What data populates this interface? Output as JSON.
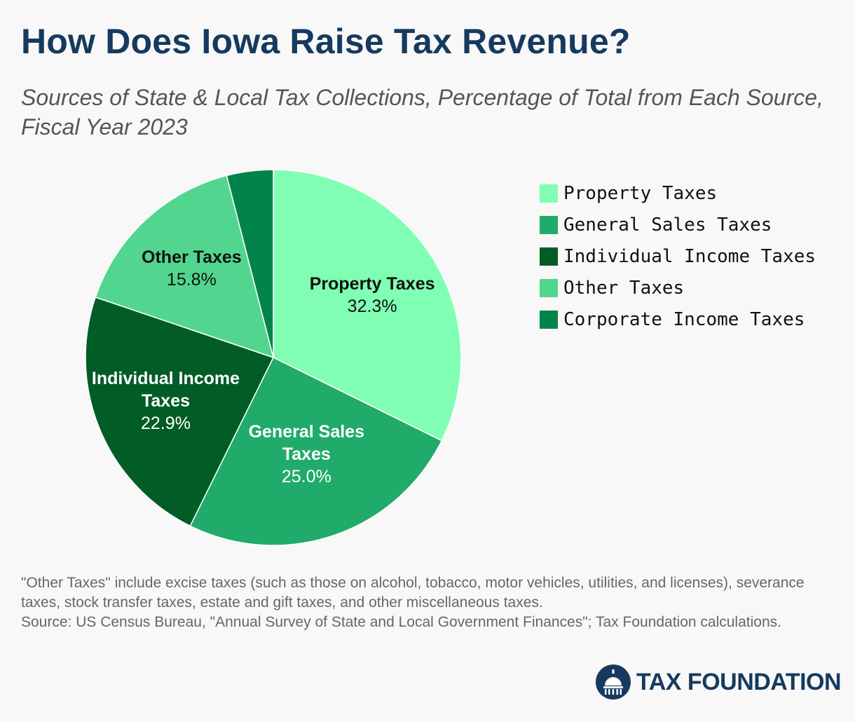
{
  "header": {
    "title": "How Does Iowa Raise Tax Revenue?",
    "subtitle": "Sources of State & Local Tax Collections, Percentage of Total from Each Source, Fiscal Year 2023"
  },
  "chart_data": {
    "type": "pie",
    "title": "How Does Iowa Raise Tax Revenue?",
    "subtitle": "Sources of State & Local Tax Collections, Percentage of Total from Each Source, Fiscal Year 2023",
    "legend_position": "right",
    "slices": [
      {
        "name": "Property Taxes",
        "value": 32.3,
        "value_label": "32.3%",
        "label_lines": [
          "Property Taxes"
        ],
        "color": "#80ffb4",
        "text_color": "#111111"
      },
      {
        "name": "General Sales Taxes",
        "value": 25.0,
        "value_label": "25.0%",
        "label_lines": [
          "General Sales",
          "Taxes"
        ],
        "color": "#21ab6a",
        "text_color": "#ffffff"
      },
      {
        "name": "Individual Income Taxes",
        "value": 22.9,
        "value_label": "22.9%",
        "label_lines": [
          "Individual Income",
          "Taxes"
        ],
        "color": "#025c26",
        "text_color": "#ffffff"
      },
      {
        "name": "Other Taxes",
        "value": 15.8,
        "value_label": "15.8%",
        "label_lines": [
          "Other Taxes"
        ],
        "color": "#52d68f",
        "text_color": "#111111"
      },
      {
        "name": "Corporate Income Taxes",
        "value": 4.0,
        "value_label": "",
        "label_lines": [],
        "color": "#01844a",
        "text_color": "#ffffff"
      }
    ]
  },
  "footnote": {
    "note": "\"Other Taxes\" include excise taxes (such as those on alcohol, tobacco, motor vehicles, utilities, and licenses), severance taxes, stock transfer taxes, estate and gift taxes, and other miscellaneous taxes.",
    "source": "Source: US Census Bureau, \"Annual Survey of State and Local Government Finances\"; Tax Foundation calculations."
  },
  "brand": {
    "name": "TAX FOUNDATION",
    "logo_icon": "capitol-dome-icon",
    "color": "#163a5f"
  }
}
